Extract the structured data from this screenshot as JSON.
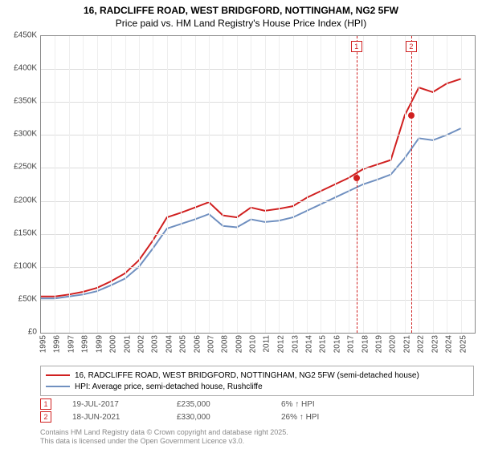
{
  "title_line1": "16, RADCLIFFE ROAD, WEST BRIDGFORD, NOTTINGHAM, NG2 5FW",
  "title_line2": "Price paid vs. HM Land Registry's House Price Index (HPI)",
  "chart": {
    "type": "line",
    "background_color": "#ffffff",
    "grid_color": "#dddddd",
    "border_color": "#888888",
    "xlim": [
      1995,
      2026
    ],
    "ylim": [
      0,
      450000
    ],
    "ytick_step": 50000,
    "ytick_labels": [
      "£0",
      "£50K",
      "£100K",
      "£150K",
      "£200K",
      "£250K",
      "£300K",
      "£350K",
      "£400K",
      "£450K"
    ],
    "xtick_step": 1,
    "xtick_labels": [
      "1995",
      "1996",
      "1997",
      "1998",
      "1999",
      "2000",
      "2001",
      "2002",
      "2003",
      "2004",
      "2005",
      "2006",
      "2007",
      "2008",
      "2009",
      "2010",
      "2011",
      "2012",
      "2013",
      "2014",
      "2015",
      "2016",
      "2017",
      "2018",
      "2019",
      "2020",
      "2021",
      "2022",
      "2023",
      "2024",
      "2025"
    ],
    "series": [
      {
        "name": "16, RADCLIFFE ROAD, WEST BRIDGFORD, NOTTINGHAM, NG2 5FW (semi-detached house)",
        "color": "#d02020",
        "line_width": 2,
        "data": [
          [
            1995,
            55000
          ],
          [
            1996,
            55000
          ],
          [
            1997,
            58000
          ],
          [
            1998,
            62000
          ],
          [
            1999,
            68000
          ],
          [
            2000,
            78000
          ],
          [
            2001,
            90000
          ],
          [
            2002,
            110000
          ],
          [
            2003,
            140000
          ],
          [
            2004,
            175000
          ],
          [
            2005,
            182000
          ],
          [
            2006,
            190000
          ],
          [
            2007,
            198000
          ],
          [
            2008,
            178000
          ],
          [
            2009,
            175000
          ],
          [
            2010,
            190000
          ],
          [
            2011,
            185000
          ],
          [
            2012,
            188000
          ],
          [
            2013,
            192000
          ],
          [
            2014,
            205000
          ],
          [
            2015,
            215000
          ],
          [
            2016,
            225000
          ],
          [
            2017,
            235000
          ],
          [
            2018,
            248000
          ],
          [
            2019,
            255000
          ],
          [
            2020,
            262000
          ],
          [
            2021,
            330000
          ],
          [
            2022,
            372000
          ],
          [
            2023,
            365000
          ],
          [
            2024,
            378000
          ],
          [
            2025,
            385000
          ]
        ]
      },
      {
        "name": "HPI: Average price, semi-detached house, Rushcliffe",
        "color": "#7090c0",
        "line_width": 2,
        "data": [
          [
            1995,
            52000
          ],
          [
            1996,
            52000
          ],
          [
            1997,
            55000
          ],
          [
            1998,
            58000
          ],
          [
            1999,
            63000
          ],
          [
            2000,
            72000
          ],
          [
            2001,
            82000
          ],
          [
            2002,
            100000
          ],
          [
            2003,
            128000
          ],
          [
            2004,
            158000
          ],
          [
            2005,
            165000
          ],
          [
            2006,
            172000
          ],
          [
            2007,
            180000
          ],
          [
            2008,
            162000
          ],
          [
            2009,
            160000
          ],
          [
            2010,
            172000
          ],
          [
            2011,
            168000
          ],
          [
            2012,
            170000
          ],
          [
            2013,
            175000
          ],
          [
            2014,
            185000
          ],
          [
            2015,
            195000
          ],
          [
            2016,
            205000
          ],
          [
            2017,
            215000
          ],
          [
            2018,
            225000
          ],
          [
            2019,
            232000
          ],
          [
            2020,
            240000
          ],
          [
            2021,
            265000
          ],
          [
            2022,
            295000
          ],
          [
            2023,
            292000
          ],
          [
            2024,
            300000
          ],
          [
            2025,
            310000
          ]
        ]
      }
    ],
    "sale_markers": [
      {
        "id": "1",
        "year": 2017.55,
        "price": 235000,
        "line_color": "#d02020",
        "dash": true
      },
      {
        "id": "2",
        "year": 2021.46,
        "price": 330000,
        "line_color": "#d02020",
        "dash": true
      }
    ]
  },
  "legend": {
    "series1_label": "16, RADCLIFFE ROAD, WEST BRIDGFORD, NOTTINGHAM, NG2 5FW (semi-detached house)",
    "series2_label": "HPI: Average price, semi-detached house, Rushcliffe"
  },
  "sales_table": [
    {
      "id": "1",
      "date": "19-JUL-2017",
      "price": "£235,000",
      "delta": "6% ↑ HPI"
    },
    {
      "id": "2",
      "date": "18-JUN-2021",
      "price": "£330,000",
      "delta": "26% ↑ HPI"
    }
  ],
  "footer_line1": "Contains HM Land Registry data © Crown copyright and database right 2025.",
  "footer_line2": "This data is licensed under the Open Government Licence v3.0."
}
